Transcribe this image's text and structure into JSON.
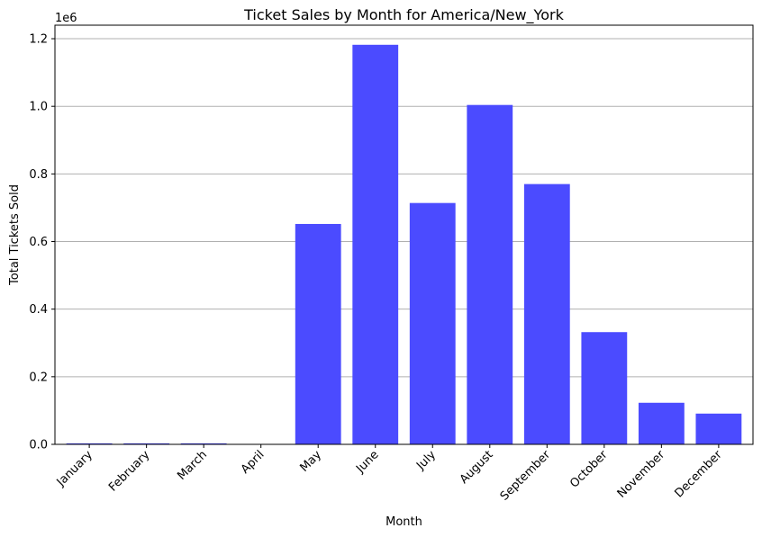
{
  "chart_data": {
    "type": "bar",
    "title": "Ticket Sales by Month for America/New_York",
    "xlabel": "Month",
    "ylabel": "Total Tickets Sold",
    "y_scale_label": "1e6",
    "categories": [
      "January",
      "February",
      "March",
      "April",
      "May",
      "June",
      "July",
      "August",
      "September",
      "October",
      "November",
      "December"
    ],
    "values": [
      3000,
      3000,
      3000,
      0,
      652000,
      1182000,
      714000,
      1004000,
      770000,
      332000,
      123000,
      91000
    ],
    "ylim": [
      0,
      1240000
    ],
    "yticks": [
      0,
      200000,
      400000,
      600000,
      800000,
      1000000,
      1200000
    ],
    "ytick_labels": [
      "0.0",
      "0.2",
      "0.4",
      "0.6",
      "0.8",
      "1.0",
      "1.2"
    ],
    "grid": "horizontal",
    "bar_color": "#4b4bff"
  }
}
